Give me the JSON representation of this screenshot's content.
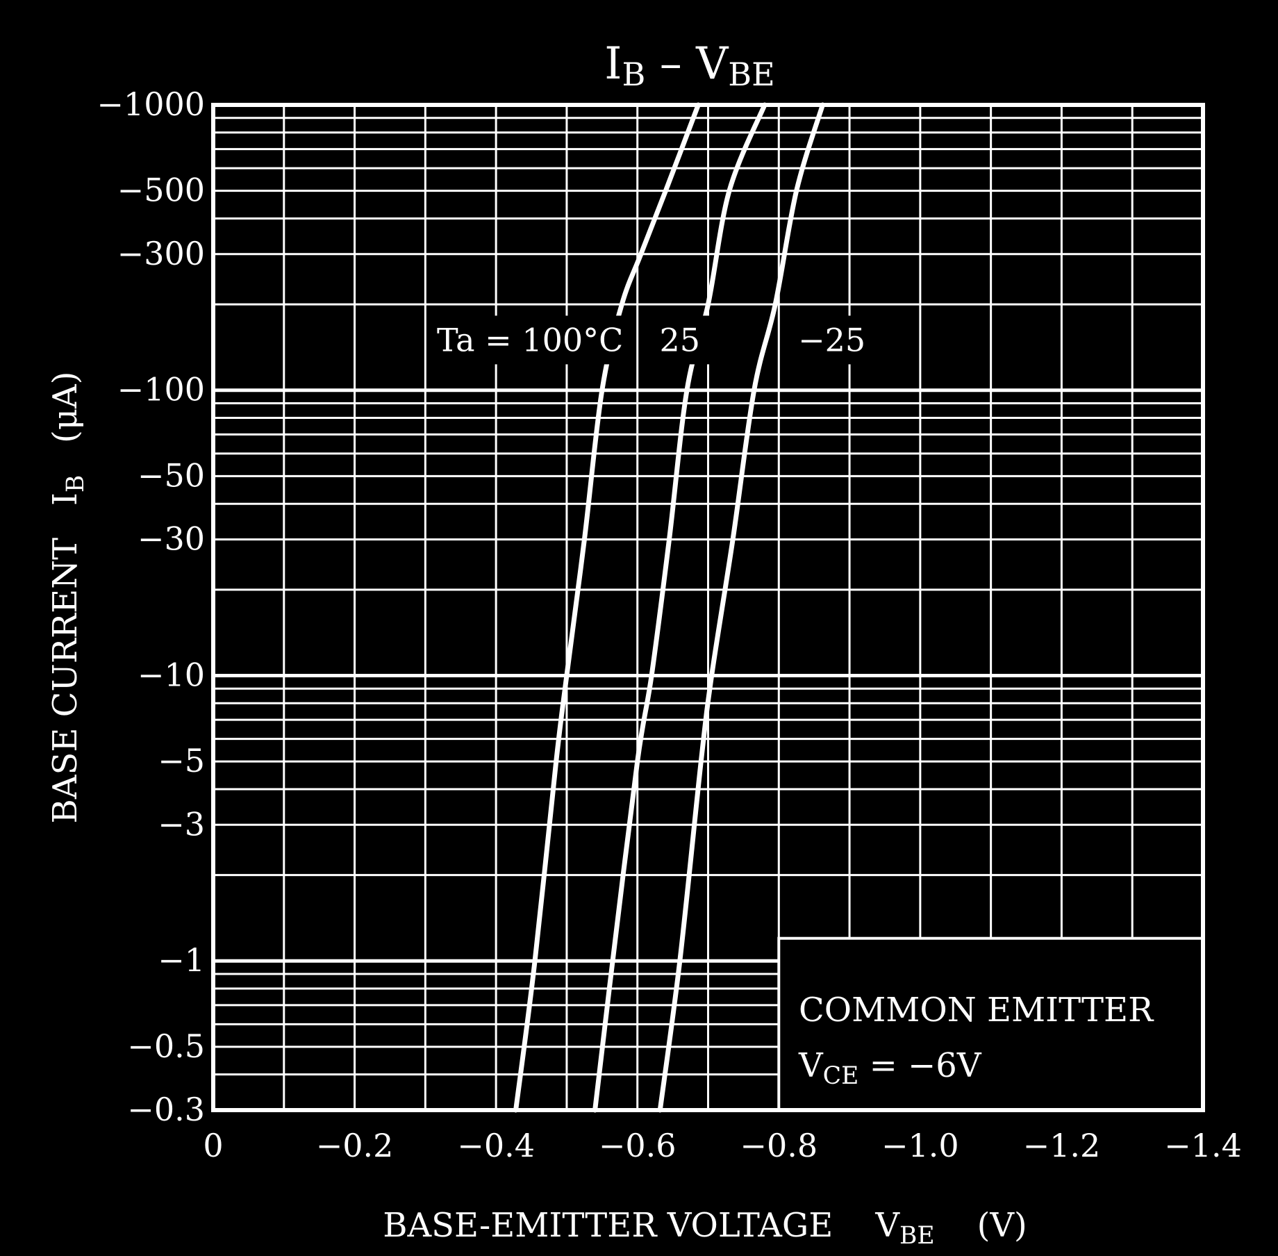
{
  "chart_data": {
    "type": "line",
    "title": {
      "main_1": "I",
      "sub_1": "B",
      "sep": " – ",
      "main_2": "V",
      "sub_2": "BE"
    },
    "xlabel": {
      "text": "BASE-EMITTER VOLTAGE",
      "symbol": "V",
      "sub": "BE",
      "unit": "(V)"
    },
    "ylabel": {
      "text": "BASE CURRENT",
      "symbol": "I",
      "sub": "B",
      "unit": "(μA)"
    },
    "x_scale": "linear",
    "y_scale": "log",
    "xlim": [
      0,
      -1.4
    ],
    "ylim": [
      -0.3,
      -1000
    ],
    "x_ticks": [
      {
        "value": 0,
        "label": "0"
      },
      {
        "value": -0.2,
        "label": "−0.2"
      },
      {
        "value": -0.4,
        "label": "−0.4"
      },
      {
        "value": -0.6,
        "label": "−0.6"
      },
      {
        "value": -0.8,
        "label": "−0.8"
      },
      {
        "value": -1.0,
        "label": "−1.0"
      },
      {
        "value": -1.2,
        "label": "−1.2"
      },
      {
        "value": -1.4,
        "label": "−1.4"
      }
    ],
    "y_ticks": [
      {
        "value": -1000,
        "label": "−1000"
      },
      {
        "value": -500,
        "label": "−500"
      },
      {
        "value": -300,
        "label": "−300"
      },
      {
        "value": -100,
        "label": "−100"
      },
      {
        "value": -50,
        "label": "−50"
      },
      {
        "value": -30,
        "label": "−30"
      },
      {
        "value": -10,
        "label": "−10"
      },
      {
        "value": -5,
        "label": "−5"
      },
      {
        "value": -3,
        "label": "−3"
      },
      {
        "value": -1,
        "label": "−1"
      },
      {
        "value": -0.5,
        "label": "−0.5"
      },
      {
        "value": -0.3,
        "label": "−0.3"
      }
    ],
    "x_grid_step": -0.1,
    "grid": true,
    "series": [
      {
        "name": "Ta = 100°C",
        "x": [
          -0.428,
          -0.455,
          -0.485,
          -0.5,
          -0.525,
          -0.55,
          -0.578,
          -0.605,
          -0.64,
          -0.686
        ],
        "y": [
          -0.3,
          -1,
          -5,
          -10,
          -30,
          -100,
          -200,
          -300,
          -500,
          -1000
        ]
      },
      {
        "name": "25",
        "x": [
          -0.54,
          -0.565,
          -0.6,
          -0.62,
          -0.645,
          -0.67,
          -0.7,
          -0.73,
          -0.78
        ],
        "y": [
          -0.3,
          -1,
          -5,
          -10,
          -30,
          -100,
          -200,
          -500,
          -1000
        ]
      },
      {
        "name": "−25",
        "x": [
          -0.632,
          -0.66,
          -0.69,
          -0.705,
          -0.735,
          -0.765,
          -0.795,
          -0.825,
          -0.862
        ],
        "y": [
          -0.3,
          -1,
          -5,
          -10,
          -30,
          -100,
          -200,
          -500,
          -1000
        ]
      }
    ],
    "curve_labels": [
      {
        "text": "Ta = 100°C",
        "anchor_x": -0.58,
        "anchor_y": -150,
        "align": "end"
      },
      {
        "text": "25",
        "anchor_x": -0.66,
        "anchor_y": -150,
        "align": "middle"
      },
      {
        "text": "−25",
        "anchor_x": -0.875,
        "anchor_y": -150,
        "align": "middle"
      }
    ],
    "annotation": {
      "line1": "COMMON EMITTER",
      "line2_symbol": "V",
      "line2_sub": "CE",
      "line2_value": " = −6V",
      "position": "bottom-right"
    }
  }
}
